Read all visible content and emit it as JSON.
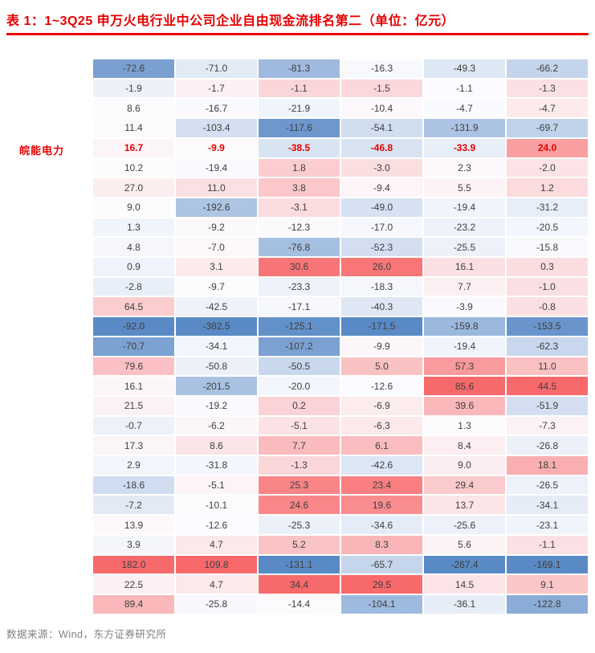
{
  "page": {
    "title": "表 1：1~3Q25 申万火电行业中公司企业自由现金流排名第二（单位：亿元）",
    "source": "数据来源：Wind，东方证券研究所"
  },
  "row_label": "皖能电力",
  "colors": {
    "accent_red": "#e60000",
    "cell_text": "#3f3f3f",
    "source_text": "#808080",
    "grid": "#ffffff",
    "scale_min": "#5a8ac6",
    "scale_mid": "#fcfcff",
    "scale_max": "#f8696b"
  },
  "chart_data": {
    "type": "heatmap",
    "title": "表 1：1~3Q25 申万火电行业中公司企业自由现金流排名第二（单位：亿元）",
    "unit": "亿元",
    "columns": 6,
    "highlighted_row_index": 4,
    "highlighted_row_label": "皖能电力",
    "color_scale": {
      "style": "excel-3color-scale-per-column",
      "anchors": [
        "min",
        "median",
        "max"
      ],
      "colors": [
        "#5a8ac6",
        "#fcfcff",
        "#f8696b"
      ]
    },
    "rows": [
      [
        -72.6,
        -71.0,
        -81.3,
        -16.3,
        -49.3,
        -66.2
      ],
      [
        -1.9,
        -1.7,
        -1.1,
        -1.5,
        -1.1,
        -1.3
      ],
      [
        8.6,
        -16.7,
        -21.9,
        -10.4,
        -4.7,
        -4.7
      ],
      [
        11.4,
        -103.4,
        -117.6,
        -54.1,
        -131.9,
        -69.7
      ],
      [
        16.7,
        -9.9,
        -38.5,
        -46.8,
        -33.9,
        24.0
      ],
      [
        10.2,
        -19.4,
        1.8,
        -3.0,
        2.3,
        -2.0
      ],
      [
        27.0,
        11.0,
        3.8,
        -9.4,
        5.5,
        1.2
      ],
      [
        9.0,
        -192.6,
        -3.1,
        -49.0,
        -19.4,
        -31.2
      ],
      [
        1.3,
        -9.2,
        -12.3,
        -17.0,
        -23.2,
        -20.5
      ],
      [
        4.8,
        -7.0,
        -76.8,
        -52.3,
        -25.5,
        -15.8
      ],
      [
        0.9,
        3.1,
        30.6,
        26.0,
        16.1,
        0.3
      ],
      [
        -2.8,
        -9.7,
        -23.3,
        -18.3,
        7.7,
        -1.0
      ],
      [
        64.5,
        -42.5,
        -17.1,
        -40.3,
        -3.9,
        -0.8
      ],
      [
        -92.0,
        -382.5,
        -125.1,
        -171.5,
        -159.8,
        -153.5
      ],
      [
        -70.7,
        -34.1,
        -107.2,
        -9.9,
        -19.4,
        -62.3
      ],
      [
        79.6,
        -50.8,
        -50.5,
        5.0,
        57.3,
        11.0
      ],
      [
        16.1,
        -201.5,
        -20.0,
        -12.6,
        85.6,
        44.5
      ],
      [
        21.5,
        -19.2,
        0.2,
        -6.9,
        39.6,
        -51.9
      ],
      [
        -0.7,
        -6.2,
        -5.1,
        -6.3,
        1.3,
        -7.3
      ],
      [
        17.3,
        8.6,
        7.7,
        6.1,
        8.4,
        -26.8
      ],
      [
        2.9,
        -31.8,
        -1.3,
        -42.6,
        9.0,
        18.1
      ],
      [
        -18.6,
        -5.1,
        25.3,
        23.4,
        29.4,
        -26.5
      ],
      [
        -7.2,
        -10.1,
        24.6,
        19.6,
        13.7,
        -34.1
      ],
      [
        13.9,
        -12.6,
        -25.3,
        -34.6,
        -25.6,
        -23.1
      ],
      [
        3.9,
        4.7,
        5.2,
        8.3,
        5.6,
        -1.1
      ],
      [
        182.0,
        109.8,
        -131.1,
        -65.7,
        -267.4,
        -169.1
      ],
      [
        22.5,
        4.7,
        34.4,
        29.5,
        14.5,
        9.1
      ],
      [
        89.4,
        -25.8,
        -14.4,
        -104.1,
        -36.1,
        -122.8
      ]
    ]
  }
}
